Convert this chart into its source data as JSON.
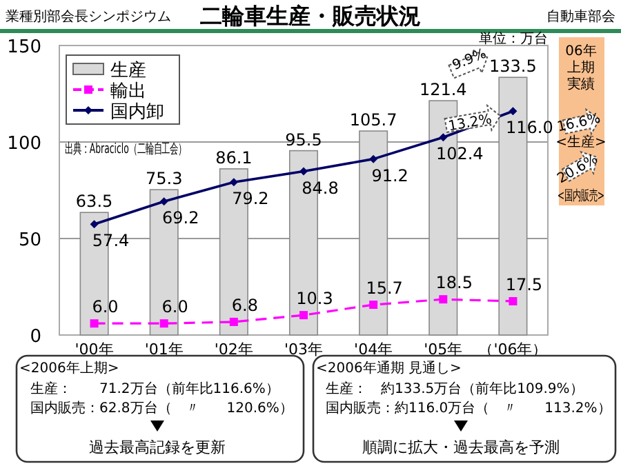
{
  "chart_data": {
    "type": "bar",
    "title": "二輪車生産・販売状況",
    "categories": [
      "'00年",
      "'01年",
      "'02年",
      "'03年",
      "'04年",
      "'05年",
      "（'06年）"
    ],
    "series": [
      {
        "name": "生産",
        "color": "#d9d9d9",
        "values": [
          63.5,
          75.3,
          86.1,
          95.5,
          105.7,
          121.4,
          133.5
        ],
        "value_labels": [
          "63.5",
          "75.3",
          "86.1",
          "95.5",
          "105.7",
          "121.4",
          "133.5"
        ]
      },
      {
        "name": "輸出",
        "type": "line",
        "color": "#ff00ff",
        "marker": "square",
        "line_style": "dashed",
        "values": [
          6,
          6,
          6.8,
          10.3,
          15.7,
          18.5,
          17.5
        ],
        "value_labels": [
          "6.0",
          "6.0",
          "6.8",
          "10.3",
          "15.7",
          "18.5",
          "17.5"
        ]
      },
      {
        "name": "国内卸",
        "type": "line",
        "color": "#000066",
        "marker": "diamond",
        "line_style": "solid",
        "values": [
          57.4,
          69.2,
          79.2,
          84.8,
          91.2,
          102.4,
          116
        ],
        "value_labels": [
          "57.4",
          "69.2",
          "79.2",
          "84.8",
          "91.2",
          "102.4",
          "116.0"
        ]
      }
    ],
    "ylim": [
      0,
      150
    ],
    "yticks": [
      0,
      50,
      100,
      150
    ],
    "grid": "y",
    "legend": "top left",
    "annotations": [
      "業種別部会長シンポジウム",
      "自動車部会",
      "単位：万台",
      "出典：Abraciclo（二輪自工会）",
      "9.9%",
      "13.2%",
      "06年",
      "16.6%",
      "<生産>",
      "20.6%",
      "<国内販売>",
      "<2006年上期>",
      "生産：　　71.2万台（前年比116.6%）",
      "国内販売：62.8万台（　〃　　120.6%）",
      "過去最高記録を更新",
      "<2006年通期 見通し>",
      "生産：　約133.5万台（前年比109.9%）",
      "国内販売：約116.0万台（　〃　　113.2%）",
      "順調に拡大・過去最高を予測",
      "上期",
      "実績"
    ]
  }
}
